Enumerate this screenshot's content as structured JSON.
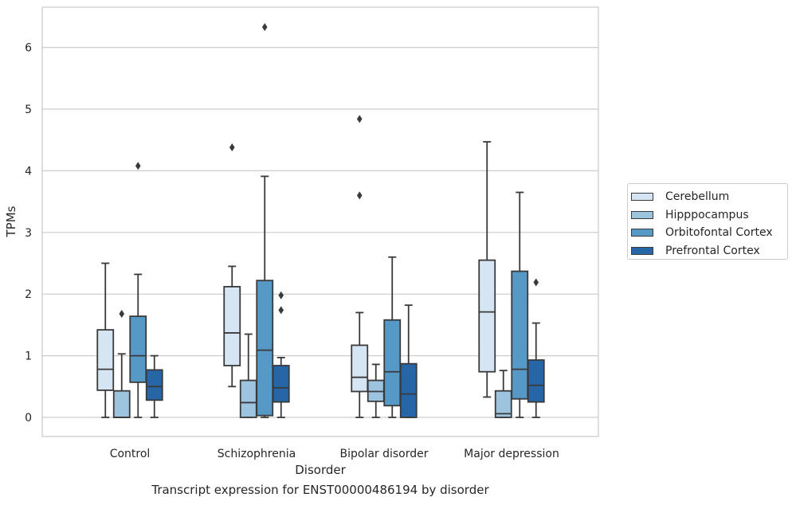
{
  "caption": "Transcript expression for ENST00000486194 by disorder",
  "chart_data": {
    "type": "boxplot",
    "xlabel": "Disorder",
    "ylabel": "TPMs",
    "ylim": [
      -0.3,
      6.65
    ],
    "yticks": [
      0,
      1,
      2,
      3,
      4,
      5,
      6
    ],
    "grid": "horizontal",
    "legend_position": "right",
    "categories": [
      "Control",
      "Schizophrenia",
      "Bipolar disorder",
      "Major depression"
    ],
    "series": [
      {
        "name": "Cerebellum",
        "color": "#d6e5f3",
        "boxes": [
          {
            "whislo": 0,
            "q1": 0.44,
            "med": 0.78,
            "q3": 1.42,
            "whishi": 2.5,
            "fliers": []
          },
          {
            "whislo": 0.5,
            "q1": 0.84,
            "med": 1.37,
            "q3": 2.12,
            "whishi": 2.45,
            "fliers": [
              4.38
            ]
          },
          {
            "whislo": 0,
            "q1": 0.42,
            "med": 0.65,
            "q3": 1.17,
            "whishi": 1.7,
            "fliers": [
              3.6,
              4.84
            ]
          },
          {
            "whislo": 0.33,
            "q1": 0.74,
            "med": 1.71,
            "q3": 2.55,
            "whishi": 4.47,
            "fliers": []
          }
        ]
      },
      {
        "name": "Hipppocampus",
        "color": "#9cc4de",
        "boxes": [
          {
            "whislo": 0,
            "q1": 0,
            "med": 0,
            "q3": 0.43,
            "whishi": 1.03,
            "fliers": [
              1.68
            ]
          },
          {
            "whislo": 0,
            "q1": 0,
            "med": 0.24,
            "q3": 0.6,
            "whishi": 1.35,
            "fliers": []
          },
          {
            "whislo": 0,
            "q1": 0.26,
            "med": 0.42,
            "q3": 0.6,
            "whishi": 0.86,
            "fliers": []
          },
          {
            "whislo": 0,
            "q1": 0,
            "med": 0.06,
            "q3": 0.43,
            "whishi": 0.76,
            "fliers": []
          }
        ]
      },
      {
        "name": "Orbitofontal Cortex",
        "color": "#5698c6",
        "boxes": [
          {
            "whislo": 0,
            "q1": 0.57,
            "med": 1.0,
            "q3": 1.64,
            "whishi": 2.32,
            "fliers": [
              4.08
            ]
          },
          {
            "whislo": 0,
            "q1": 0.03,
            "med": 1.09,
            "q3": 2.22,
            "whishi": 3.91,
            "fliers": [
              6.33
            ]
          },
          {
            "whislo": 0,
            "q1": 0.19,
            "med": 0.74,
            "q3": 1.58,
            "whishi": 2.6,
            "fliers": []
          },
          {
            "whislo": 0,
            "q1": 0.3,
            "med": 0.78,
            "q3": 2.37,
            "whishi": 3.65,
            "fliers": []
          }
        ]
      },
      {
        "name": "Prefrontal Cortex",
        "color": "#2766a6",
        "boxes": [
          {
            "whislo": 0,
            "q1": 0.28,
            "med": 0.5,
            "q3": 0.77,
            "whishi": 1.0,
            "fliers": []
          },
          {
            "whislo": 0,
            "q1": 0.25,
            "med": 0.48,
            "q3": 0.84,
            "whishi": 0.97,
            "fliers": [
              1.74,
              1.98
            ]
          },
          {
            "whislo": 0,
            "q1": 0,
            "med": 0.38,
            "q3": 0.87,
            "whishi": 1.82,
            "fliers": []
          },
          {
            "whislo": 0,
            "q1": 0.25,
            "med": 0.52,
            "q3": 0.93,
            "whishi": 1.53,
            "fliers": [
              2.19
            ]
          }
        ]
      }
    ]
  }
}
